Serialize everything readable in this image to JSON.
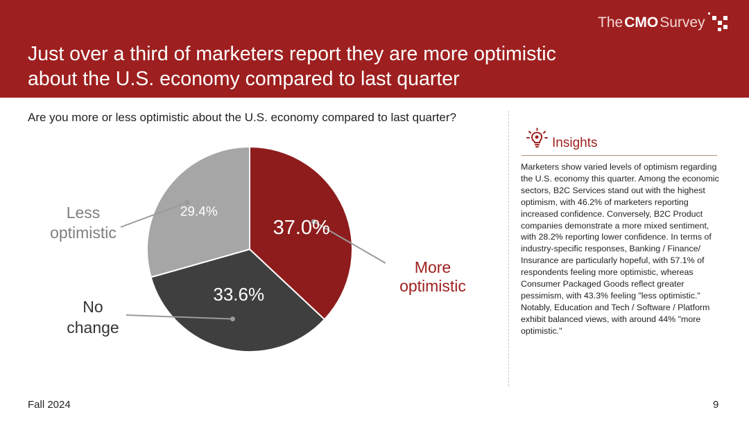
{
  "header": {
    "logo_prefix": "The",
    "logo_strong": "CMO",
    "logo_suffix": "Survey",
    "title": "Just over a third of marketers report they are more optimistic about the U.S. economy compared to last quarter"
  },
  "question": "Are you more or less optimistic about the U.S. economy compared to last quarter?",
  "colors": {
    "brand": "#9e1f1f",
    "more_optimistic": "#8e1c1c",
    "no_change": "#3f3f3f",
    "less_optimistic": "#a6a6a6"
  },
  "chart_data": {
    "type": "pie",
    "title": "",
    "slices": [
      {
        "label": "More optimistic",
        "label_lines": [
          "More",
          "optimistic"
        ],
        "value": 37.0,
        "display": "37.0%",
        "color": "#8e1c1c",
        "label_color": "#9e1f1f"
      },
      {
        "label": "No change",
        "label_lines": [
          "No",
          "change"
        ],
        "value": 33.6,
        "display": "33.6%",
        "color": "#3f3f3f",
        "label_color": "#333333"
      },
      {
        "label": "Less optimistic",
        "label_lines": [
          "Less",
          "optimistic"
        ],
        "value": 29.4,
        "display": "29.4%",
        "color": "#a6a6a6",
        "label_color": "#7f7f7f"
      }
    ]
  },
  "insights": {
    "title": "Insights",
    "body": "Marketers show varied levels of optimism regarding the U.S. economy this quarter. Among the economic sectors, B2C Services stand out with the highest optimism, with 46.2% of marketers reporting increased confidence. Conversely, B2C Product companies demonstrate a more mixed sentiment, with 28.2% reporting lower confidence. In terms of industry-specific responses, Banking / Finance/ Insurance are particularly hopeful, with 57.1% of respondents feeling more optimistic, whereas Consumer Packaged Goods reflect greater pessimism, with 43.3% feeling \"less optimistic.\" Notably, Education and Tech / Software / Platform exhibit balanced views, with around 44% \"more optimistic.\""
  },
  "footer": {
    "season": "Fall 2024",
    "page_number": "9"
  }
}
